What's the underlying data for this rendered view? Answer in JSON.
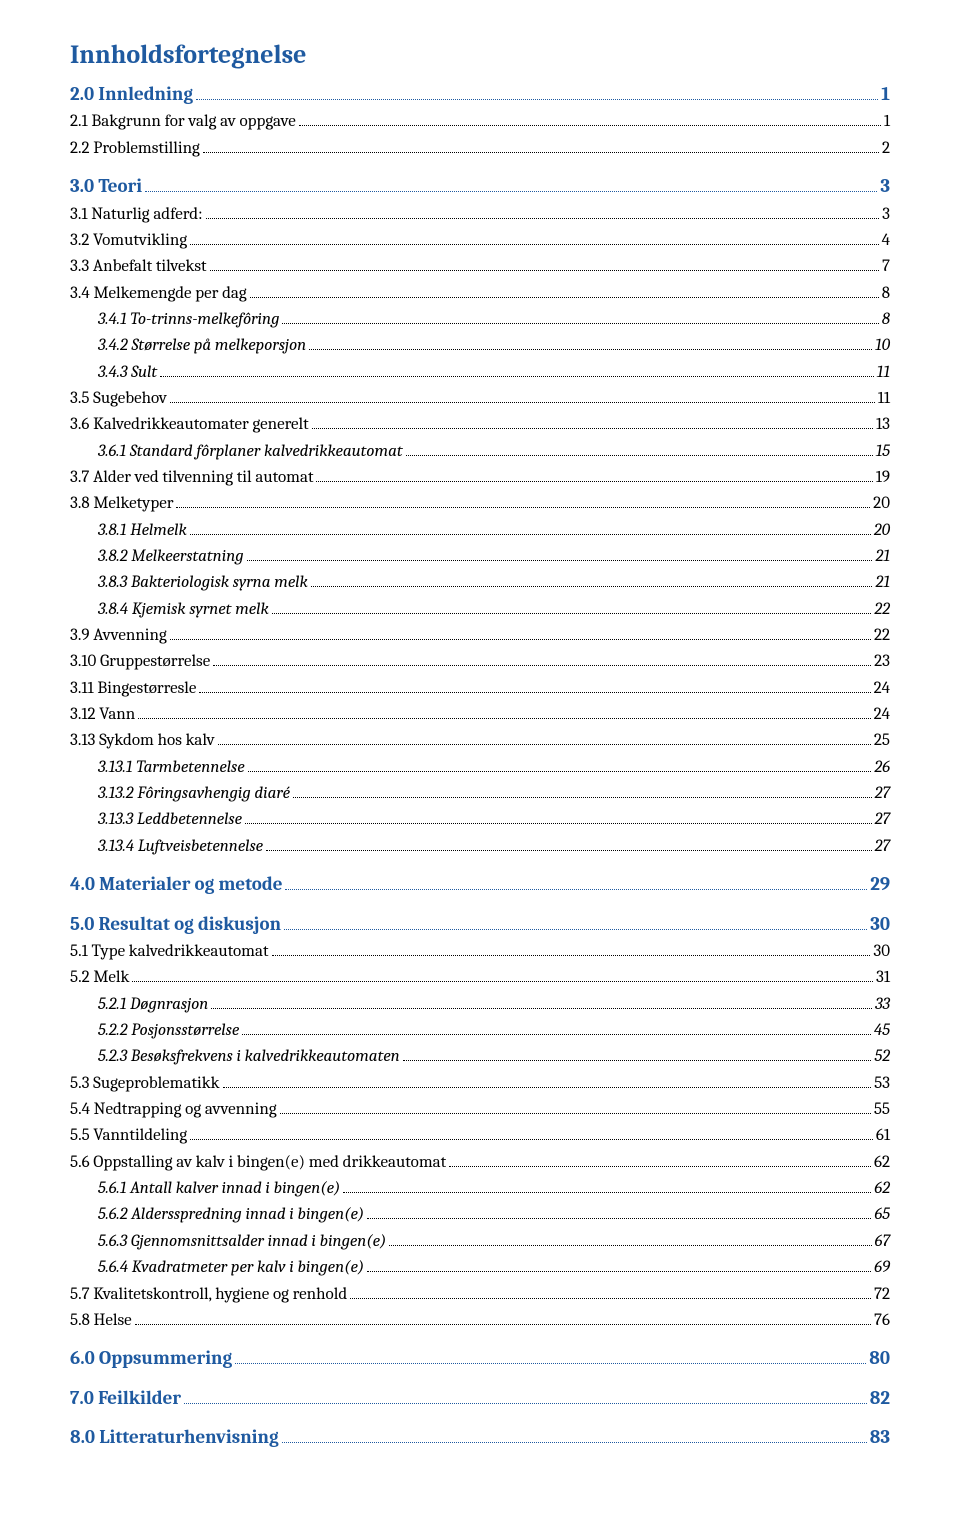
{
  "title": "Innholdsfortegnelse",
  "entries": [
    {
      "label": "2.0 Innledning",
      "page": "1",
      "indent": 0,
      "style": "heading"
    },
    {
      "label": "2.1 Bakgrunn for valg av oppgave",
      "page": "1",
      "indent": 0,
      "style": "normal"
    },
    {
      "label": "2.2 Problemstilling",
      "page": "2",
      "indent": 0,
      "style": "normal"
    },
    {
      "spacer": true
    },
    {
      "label": "3.0 Teori",
      "page": "3",
      "indent": 0,
      "style": "heading"
    },
    {
      "label": "3.1 Naturlig adferd:",
      "page": "3",
      "indent": 0,
      "style": "normal"
    },
    {
      "label": "3.2 Vomutvikling",
      "page": "4",
      "indent": 0,
      "style": "normal"
    },
    {
      "label": "3.3 Anbefalt tilvekst",
      "page": "7",
      "indent": 0,
      "style": "normal"
    },
    {
      "label": "3.4 Melkemengde per dag",
      "page": "8",
      "indent": 0,
      "style": "normal"
    },
    {
      "label": "3.4.1 To-trinns-melkefôring",
      "page": "8",
      "indent": 1,
      "style": "italic"
    },
    {
      "label": "3.4.2 Størrelse på melkeporsjon",
      "page": "10",
      "indent": 1,
      "style": "italic"
    },
    {
      "label": "3.4.3 Sult",
      "page": "11",
      "indent": 1,
      "style": "italic"
    },
    {
      "label": "3.5 Sugebehov",
      "page": "11",
      "indent": 0,
      "style": "normal"
    },
    {
      "label": "3.6 Kalvedrikkeautomater generelt",
      "page": "13",
      "indent": 0,
      "style": "normal"
    },
    {
      "label": "3.6.1 Standard fôrplaner kalvedrikkeautomat",
      "page": "15",
      "indent": 1,
      "style": "italic"
    },
    {
      "label": "3.7 Alder ved tilvenning til automat",
      "page": "19",
      "indent": 0,
      "style": "normal"
    },
    {
      "label": "3.8 Melketyper",
      "page": "20",
      "indent": 0,
      "style": "normal"
    },
    {
      "label": "3.8.1 Helmelk",
      "page": "20",
      "indent": 1,
      "style": "italic"
    },
    {
      "label": "3.8.2 Melkeerstatning",
      "page": "21",
      "indent": 1,
      "style": "italic"
    },
    {
      "label": "3.8.3 Bakteriologisk syrna melk",
      "page": "21",
      "indent": 1,
      "style": "italic"
    },
    {
      "label": "3.8.4 Kjemisk syrnet melk",
      "page": "22",
      "indent": 1,
      "style": "italic"
    },
    {
      "label": "3.9 Avvenning",
      "page": "22",
      "indent": 0,
      "style": "normal"
    },
    {
      "label": "3.10 Gruppestørrelse",
      "page": "23",
      "indent": 0,
      "style": "normal"
    },
    {
      "label": "3.11 Bingestørresle",
      "page": "24",
      "indent": 0,
      "style": "normal"
    },
    {
      "label": "3.12 Vann",
      "page": "24",
      "indent": 0,
      "style": "normal"
    },
    {
      "label": "3.13 Sykdom hos kalv",
      "page": "25",
      "indent": 0,
      "style": "normal"
    },
    {
      "label": "3.13.1 Tarmbetennelse",
      "page": "26",
      "indent": 1,
      "style": "italic"
    },
    {
      "label": "3.13.2 Fôringsavhengig diaré",
      "page": "27",
      "indent": 1,
      "style": "italic"
    },
    {
      "label": "3.13.3 Leddbetennelse",
      "page": "27",
      "indent": 1,
      "style": "italic"
    },
    {
      "label": "3.13.4 Luftveisbetennelse",
      "page": "27",
      "indent": 1,
      "style": "italic"
    },
    {
      "spacer": true
    },
    {
      "label": "4.0 Materialer og metode",
      "page": "29",
      "indent": 0,
      "style": "heading"
    },
    {
      "spacer": true
    },
    {
      "label": "5.0 Resultat og diskusjon",
      "page": "30",
      "indent": 0,
      "style": "heading"
    },
    {
      "label": "5.1 Type kalvedrikkeautomat",
      "page": "30",
      "indent": 0,
      "style": "normal"
    },
    {
      "label": "5.2 Melk",
      "page": "31",
      "indent": 0,
      "style": "normal"
    },
    {
      "label": "5.2.1 Døgnrasjon",
      "page": "33",
      "indent": 1,
      "style": "italic"
    },
    {
      "label": "5.2.2 Posjonsstørrelse",
      "page": "45",
      "indent": 1,
      "style": "italic"
    },
    {
      "label": "5.2.3 Besøksfrekvens i kalvedrikkeautomaten",
      "page": "52",
      "indent": 1,
      "style": "italic"
    },
    {
      "label": "5.3 Sugeproblematikk",
      "page": "53",
      "indent": 0,
      "style": "normal"
    },
    {
      "label": "5.4 Nedtrapping og avvenning",
      "page": "55",
      "indent": 0,
      "style": "normal"
    },
    {
      "label": "5.5 Vanntildeling",
      "page": "61",
      "indent": 0,
      "style": "normal"
    },
    {
      "label": "5.6 Oppstalling av kalv i bingen(e) med drikkeautomat",
      "page": "62",
      "indent": 0,
      "style": "normal"
    },
    {
      "label": "5.6.1 Antall kalver innad i bingen(e)",
      "page": "62",
      "indent": 1,
      "style": "italic"
    },
    {
      "label": "5.6.2 Aldersspredning innad i bingen(e)",
      "page": "65",
      "indent": 1,
      "style": "italic"
    },
    {
      "label": "5.6.3 Gjennomsnittsalder innad i bingen(e)",
      "page": "67",
      "indent": 1,
      "style": "italic"
    },
    {
      "label": "5.6.4 Kvadratmeter per kalv i bingen(e)",
      "page": "69",
      "indent": 1,
      "style": "italic"
    },
    {
      "label": "5.7 Kvalitetskontroll, hygiene og renhold",
      "page": "72",
      "indent": 0,
      "style": "normal"
    },
    {
      "label": "5.8 Helse",
      "page": "76",
      "indent": 0,
      "style": "normal"
    },
    {
      "spacer": true
    },
    {
      "label": "6.0 Oppsummering",
      "page": "80",
      "indent": 0,
      "style": "heading"
    },
    {
      "spacer": true
    },
    {
      "label": "7.0 Feilkilder",
      "page": "82",
      "indent": 0,
      "style": "heading"
    },
    {
      "spacer": true
    },
    {
      "label": "8.0 Litteraturhenvisning",
      "page": "83",
      "indent": 0,
      "style": "heading"
    }
  ]
}
